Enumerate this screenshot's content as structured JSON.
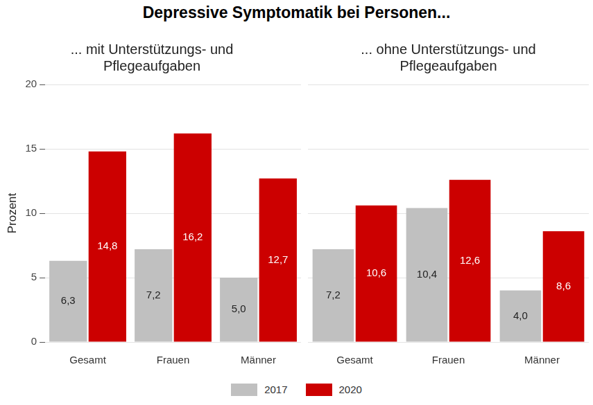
{
  "title": "Depressive Symptomatik bei Personen...",
  "chart_data": [
    {
      "type": "bar",
      "subtitle": "... mit Unterstützungs- und\nPflegeaufgaben",
      "y_label": "Prozent",
      "categories": [
        "Gesamt",
        "Frauen",
        "Männer"
      ],
      "series": [
        {
          "name": "2017",
          "color": "#c0c0c0",
          "values": [
            6.3,
            7.2,
            5.0
          ],
          "value_labels": [
            "6,3",
            "7,2",
            "5,0"
          ]
        },
        {
          "name": "2020",
          "color": "#cc0000",
          "values": [
            14.8,
            16.2,
            12.7
          ],
          "value_labels": [
            "14,8",
            "16,2",
            "12,7"
          ]
        }
      ],
      "ylim": [
        0,
        20
      ],
      "yticks": [
        0,
        5,
        10,
        15,
        20
      ],
      "grid": true,
      "data_labels": true,
      "legend": "bottom"
    },
    {
      "type": "bar",
      "subtitle": "... ohne Unterstützungs- und\nPflegeaufgaben",
      "categories": [
        "Gesamt",
        "Frauen",
        "Männer"
      ],
      "series": [
        {
          "name": "2017",
          "color": "#c0c0c0",
          "values": [
            7.2,
            10.4,
            4.0
          ],
          "value_labels": [
            "7,2",
            "10,4",
            "4,0"
          ]
        },
        {
          "name": "2020",
          "color": "#cc0000",
          "values": [
            10.6,
            12.6,
            8.6
          ],
          "value_labels": [
            "10,6",
            "12,6",
            "8,6"
          ]
        }
      ],
      "ylim": [
        0,
        20
      ],
      "yticks": [
        0,
        5,
        10,
        15,
        20
      ],
      "grid": true,
      "data_labels": true,
      "tick_labels": "x"
    }
  ]
}
